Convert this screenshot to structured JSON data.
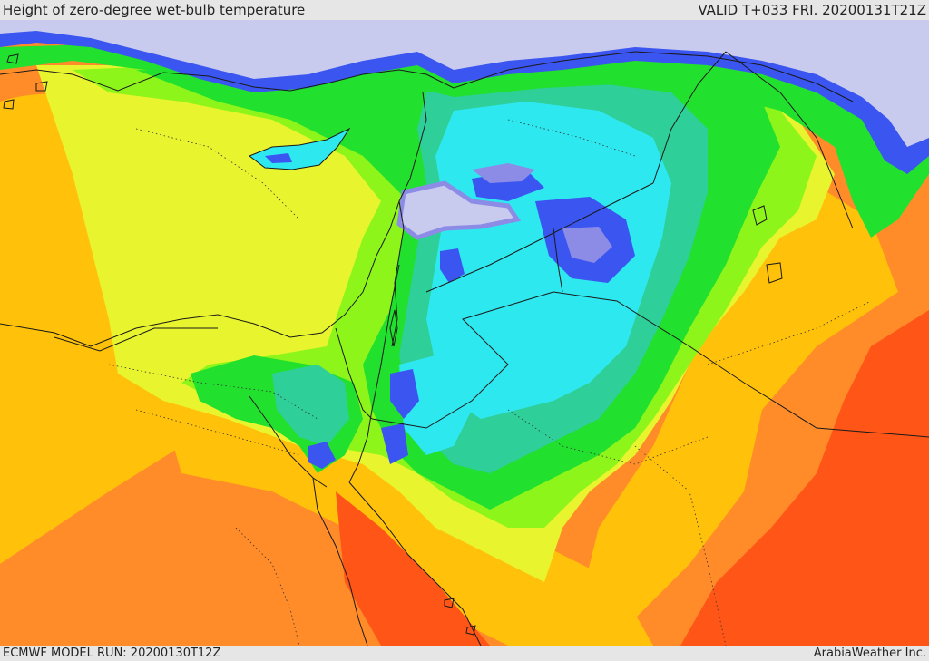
{
  "header": {
    "title": "Height of zero-degree wet-bulb temperature",
    "valid": "VALID T+033 FRI. 20200131T21Z"
  },
  "footer": {
    "model_run": "ECMWF MODEL RUN: 20200130T12Z",
    "credit": "ArabiaWeather Inc."
  },
  "palette": {
    "sea": "#c8cbee",
    "lavender": "#8c8ce6",
    "blue": "#3a55f0",
    "cyan": "#2ee8f0",
    "teal": "#2ecf98",
    "green": "#22e02e",
    "lime": "#8ef51a",
    "yellow": "#e8f52e",
    "gold": "#ffc10a",
    "orange": "#ff8c28",
    "red_orange": "#ff5618",
    "border": "#1a1a1a"
  }
}
